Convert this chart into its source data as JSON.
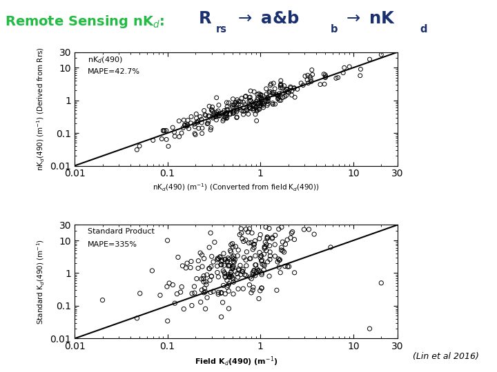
{
  "title_left_color": "#22bb44",
  "title_right_color": "#1a2f6e",
  "header_fontsize": 14,
  "plot1_xlabel": "nK$_d$(490) (m$^{-1}$) (Converted from field K$_d$(490))",
  "plot1_ylabel": "nK$_d$(490) (m$^{-1}$) (Derived from Rrs)",
  "plot1_label": "nK$_d$(490)",
  "plot1_mape": "MAPE=42.7%",
  "plot2_xlabel": "Field K$_d$(490) (m$^{-1}$)",
  "plot2_ylabel": "Standard K$_d$(490) (m$^{-1}$)",
  "plot2_label": "Standard Product",
  "plot2_mape": "MAPE=335%",
  "citation": "(Lin et al 2016)",
  "xlim": [
    0.01,
    30
  ],
  "ylim": [
    0.01,
    30
  ],
  "background_color": "#ffffff",
  "seed1": 42,
  "seed2": 99
}
